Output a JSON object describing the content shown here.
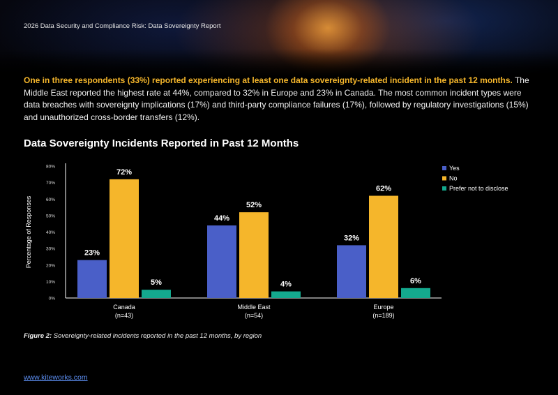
{
  "header": {
    "report_title": "2026 Data Security and Compliance Risk: Data Sovereignty Report"
  },
  "intro": {
    "highlight": "One in three respondents (33%) reported experiencing at least one data sovereignty-related incident in the past 12 months.",
    "body": " The Middle East reported the highest rate at 44%, compared to 32% in Europe and 23% in Canada. The most common incident types were data breaches with sovereignty implications (17%) and third-party compliance failures (17%), followed by regulatory investigations (15%) and unauthorized cross-border transfers (12%)."
  },
  "chart_title": "Data Sovereignty Incidents Reported in Past 12 Months",
  "chart_data": {
    "type": "bar",
    "title": "Data Sovereignty Incidents Reported in Past 12 Months",
    "ylabel": "Percentage of Responses",
    "xlabel": "",
    "ylim": [
      0,
      80
    ],
    "yticks": [
      0,
      10,
      20,
      30,
      40,
      50,
      60,
      70,
      80
    ],
    "tick_suffix": "%",
    "categories": [
      "Canada",
      "Middle East",
      "Europe"
    ],
    "category_counts": [
      "(n=43)",
      "(n=54)",
      "(n=189)"
    ],
    "series": [
      {
        "name": "Yes",
        "color": "#4a5fc8",
        "values": [
          23,
          44,
          32
        ],
        "labels": [
          "23%",
          "44%",
          "32%"
        ]
      },
      {
        "name": "No",
        "color": "#f5b62b",
        "values": [
          72,
          52,
          62
        ],
        "labels": [
          "72%",
          "52%",
          "62%"
        ]
      },
      {
        "name": "Prefer not to disclose",
        "color": "#14a98e",
        "values": [
          5,
          4,
          6
        ],
        "labels": [
          "5%",
          "4%",
          "6%"
        ]
      }
    ],
    "legend_position": "top-right",
    "grid": false
  },
  "caption": {
    "label": "Figure 2:",
    "text": " Sovereignty-related incidents reported in the past 12 months, by region"
  },
  "footer": {
    "link": "www.kiteworks.com"
  }
}
